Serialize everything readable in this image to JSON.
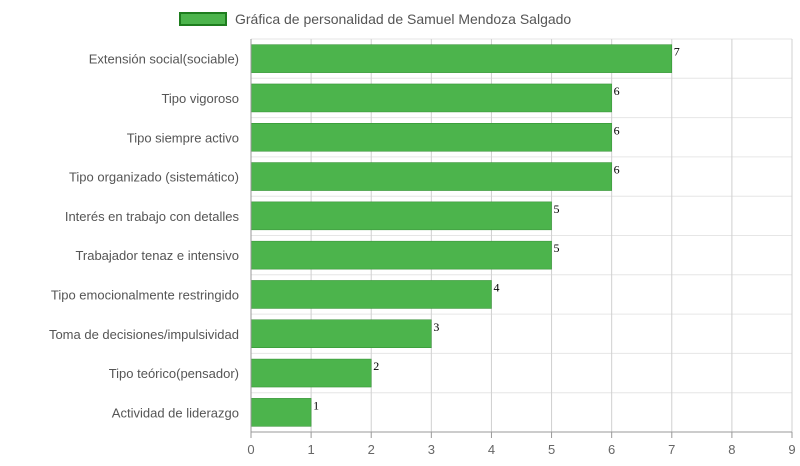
{
  "legend": {
    "label": "Gráfica de personalidad de Samuel Mendoza Salgado",
    "color": "#4cb44c"
  },
  "chart_data": {
    "type": "bar",
    "orientation": "horizontal",
    "series": [
      {
        "name": "Gráfica de personalidad de Samuel Mendoza Salgado",
        "values": [
          7,
          6,
          6,
          6,
          5,
          5,
          4,
          3,
          2,
          1
        ]
      }
    ],
    "categories": [
      "Extensión social(sociable)",
      "Tipo vigoroso",
      "Tipo siempre activo",
      "Tipo organizado (sistemático)",
      "Interés en trabajo con detalles",
      "Trabajador tenaz e intensivo",
      "Tipo emocionalmente restringido",
      "Toma de decisiones/impulsividad",
      "Tipo teórico(pensador)",
      "Actividad de liderazgo"
    ],
    "x_ticks": [
      "0",
      "1",
      "2",
      "3",
      "4",
      "5",
      "6",
      "7",
      "8",
      "9"
    ],
    "xlim": [
      0,
      9
    ],
    "grid": true,
    "legend_position": "top-center",
    "bar_color": "#4cb44c",
    "bar_border_color": "#2e8b2e"
  }
}
